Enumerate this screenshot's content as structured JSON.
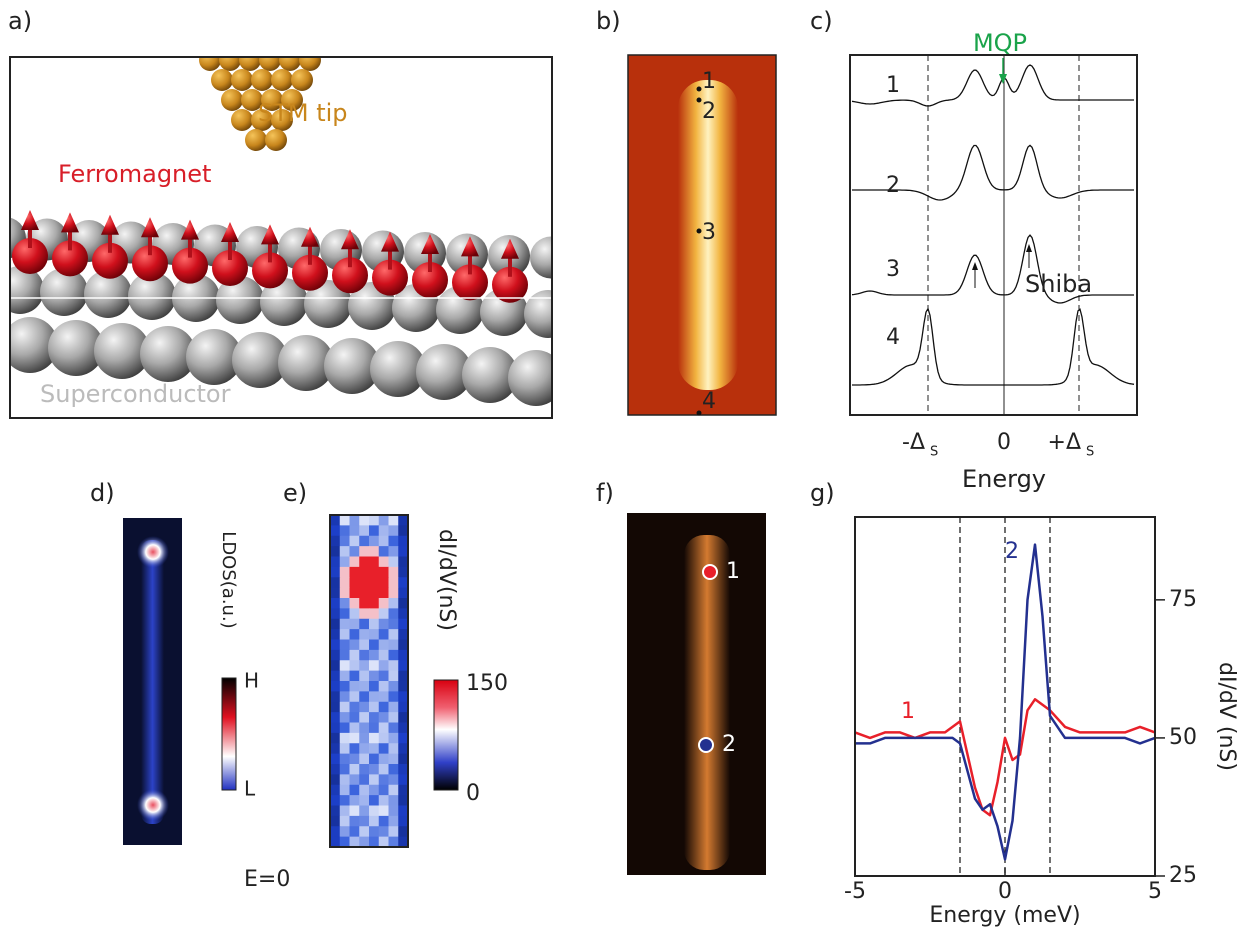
{
  "panel_labels": [
    "a)",
    "b)",
    "c)",
    "d)",
    "e)",
    "f)",
    "g)"
  ],
  "panel_a": {
    "tip": "STM tip",
    "ferromagnet": "Ferromagnet",
    "superconductor": "Superconductor"
  },
  "panel_b": {
    "points": [
      "1",
      "2",
      "3",
      "4"
    ]
  },
  "panel_c": {
    "curves": [
      "1",
      "2",
      "3",
      "4"
    ],
    "mqp": "MQP",
    "shiba": "Shiba",
    "minus_delta": "-Δ",
    "delta_subscript": "S",
    "zero": "0",
    "plus_delta": "+Δ",
    "xlabel": "Energy"
  },
  "panel_d": {
    "colorbar_label": "LDOS(a.u.)",
    "high": "H",
    "low": "L",
    "energy": "E=0"
  },
  "panel_e": {
    "colorbar_label": "dI/dV(nS)",
    "max": "150",
    "min": "0"
  },
  "panel_f": {
    "points": [
      "1",
      "2"
    ]
  },
  "chart_data": {
    "type": "line",
    "xlabel": "Energy (meV)",
    "ylabel": "dI/dV (nS)",
    "x": [
      -5,
      -4.5,
      -4,
      -3.5,
      -3,
      -2.5,
      -2,
      -1.75,
      -1.5,
      -1.25,
      -1,
      -0.75,
      -0.5,
      -0.25,
      0,
      0.25,
      0.5,
      0.75,
      1,
      1.25,
      1.5,
      2,
      2.5,
      3,
      3.5,
      4,
      4.5,
      5
    ],
    "series": [
      {
        "name": "1",
        "color": "#e8202a",
        "values": [
          51,
          50,
          51,
          51,
          50,
          51,
          51,
          52,
          53,
          47,
          41,
          37,
          36,
          42,
          50,
          46,
          47,
          55,
          57,
          56,
          55,
          52,
          51,
          51,
          51,
          51,
          52,
          51
        ]
      },
      {
        "name": "2",
        "color": "#23308f",
        "values": [
          49,
          49,
          50,
          50,
          50,
          50,
          50,
          50,
          49,
          44,
          39,
          37,
          38,
          34,
          28,
          35,
          50,
          75,
          85,
          72,
          54,
          50,
          50,
          50,
          50,
          50,
          49,
          50
        ]
      }
    ],
    "reference_lines": [
      -1.5,
      0,
      1.5
    ],
    "xlim": [
      -5,
      5
    ],
    "ylim": [
      25,
      90
    ],
    "xticks": [
      -5,
      0,
      5
    ],
    "yticks": [
      25,
      50,
      75
    ]
  }
}
